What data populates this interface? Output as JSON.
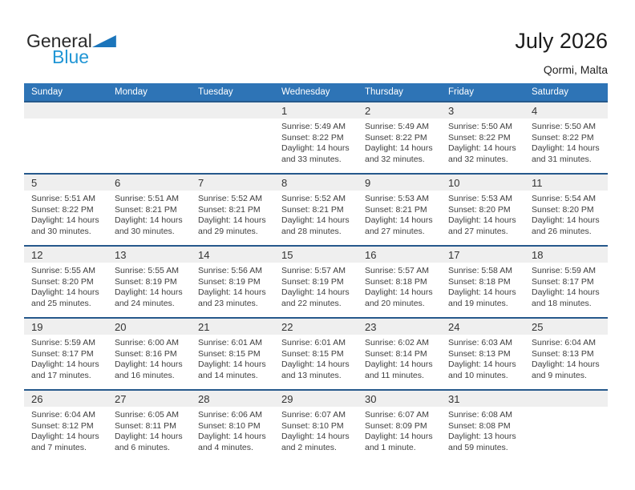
{
  "logo": {
    "part1": "General",
    "part2": "Blue",
    "flag_icon": "triangle-flag"
  },
  "header": {
    "title": "July 2026",
    "location": "Qormi, Malta"
  },
  "weekdays": [
    "Sunday",
    "Monday",
    "Tuesday",
    "Wednesday",
    "Thursday",
    "Friday",
    "Saturday"
  ],
  "colors": {
    "header_bg": "#2e74b6",
    "band_bg": "#efefef",
    "week_border": "#26598c",
    "logo_blue": "#2196d5",
    "flag_blue": "#1b75bb",
    "text_dark": "#3e3e3e"
  },
  "weeks": [
    [
      null,
      null,
      null,
      {
        "day": "1",
        "sunrise": "Sunrise: 5:49 AM",
        "sunset": "Sunset: 8:22 PM",
        "daylight": "Daylight: 14 hours and 33 minutes."
      },
      {
        "day": "2",
        "sunrise": "Sunrise: 5:49 AM",
        "sunset": "Sunset: 8:22 PM",
        "daylight": "Daylight: 14 hours and 32 minutes."
      },
      {
        "day": "3",
        "sunrise": "Sunrise: 5:50 AM",
        "sunset": "Sunset: 8:22 PM",
        "daylight": "Daylight: 14 hours and 32 minutes."
      },
      {
        "day": "4",
        "sunrise": "Sunrise: 5:50 AM",
        "sunset": "Sunset: 8:22 PM",
        "daylight": "Daylight: 14 hours and 31 minutes."
      }
    ],
    [
      {
        "day": "5",
        "sunrise": "Sunrise: 5:51 AM",
        "sunset": "Sunset: 8:22 PM",
        "daylight": "Daylight: 14 hours and 30 minutes."
      },
      {
        "day": "6",
        "sunrise": "Sunrise: 5:51 AM",
        "sunset": "Sunset: 8:21 PM",
        "daylight": "Daylight: 14 hours and 30 minutes."
      },
      {
        "day": "7",
        "sunrise": "Sunrise: 5:52 AM",
        "sunset": "Sunset: 8:21 PM",
        "daylight": "Daylight: 14 hours and 29 minutes."
      },
      {
        "day": "8",
        "sunrise": "Sunrise: 5:52 AM",
        "sunset": "Sunset: 8:21 PM",
        "daylight": "Daylight: 14 hours and 28 minutes."
      },
      {
        "day": "9",
        "sunrise": "Sunrise: 5:53 AM",
        "sunset": "Sunset: 8:21 PM",
        "daylight": "Daylight: 14 hours and 27 minutes."
      },
      {
        "day": "10",
        "sunrise": "Sunrise: 5:53 AM",
        "sunset": "Sunset: 8:20 PM",
        "daylight": "Daylight: 14 hours and 27 minutes."
      },
      {
        "day": "11",
        "sunrise": "Sunrise: 5:54 AM",
        "sunset": "Sunset: 8:20 PM",
        "daylight": "Daylight: 14 hours and 26 minutes."
      }
    ],
    [
      {
        "day": "12",
        "sunrise": "Sunrise: 5:55 AM",
        "sunset": "Sunset: 8:20 PM",
        "daylight": "Daylight: 14 hours and 25 minutes."
      },
      {
        "day": "13",
        "sunrise": "Sunrise: 5:55 AM",
        "sunset": "Sunset: 8:19 PM",
        "daylight": "Daylight: 14 hours and 24 minutes."
      },
      {
        "day": "14",
        "sunrise": "Sunrise: 5:56 AM",
        "sunset": "Sunset: 8:19 PM",
        "daylight": "Daylight: 14 hours and 23 minutes."
      },
      {
        "day": "15",
        "sunrise": "Sunrise: 5:57 AM",
        "sunset": "Sunset: 8:19 PM",
        "daylight": "Daylight: 14 hours and 22 minutes."
      },
      {
        "day": "16",
        "sunrise": "Sunrise: 5:57 AM",
        "sunset": "Sunset: 8:18 PM",
        "daylight": "Daylight: 14 hours and 20 minutes."
      },
      {
        "day": "17",
        "sunrise": "Sunrise: 5:58 AM",
        "sunset": "Sunset: 8:18 PM",
        "daylight": "Daylight: 14 hours and 19 minutes."
      },
      {
        "day": "18",
        "sunrise": "Sunrise: 5:59 AM",
        "sunset": "Sunset: 8:17 PM",
        "daylight": "Daylight: 14 hours and 18 minutes."
      }
    ],
    [
      {
        "day": "19",
        "sunrise": "Sunrise: 5:59 AM",
        "sunset": "Sunset: 8:17 PM",
        "daylight": "Daylight: 14 hours and 17 minutes."
      },
      {
        "day": "20",
        "sunrise": "Sunrise: 6:00 AM",
        "sunset": "Sunset: 8:16 PM",
        "daylight": "Daylight: 14 hours and 16 minutes."
      },
      {
        "day": "21",
        "sunrise": "Sunrise: 6:01 AM",
        "sunset": "Sunset: 8:15 PM",
        "daylight": "Daylight: 14 hours and 14 minutes."
      },
      {
        "day": "22",
        "sunrise": "Sunrise: 6:01 AM",
        "sunset": "Sunset: 8:15 PM",
        "daylight": "Daylight: 14 hours and 13 minutes."
      },
      {
        "day": "23",
        "sunrise": "Sunrise: 6:02 AM",
        "sunset": "Sunset: 8:14 PM",
        "daylight": "Daylight: 14 hours and 11 minutes."
      },
      {
        "day": "24",
        "sunrise": "Sunrise: 6:03 AM",
        "sunset": "Sunset: 8:13 PM",
        "daylight": "Daylight: 14 hours and 10 minutes."
      },
      {
        "day": "25",
        "sunrise": "Sunrise: 6:04 AM",
        "sunset": "Sunset: 8:13 PM",
        "daylight": "Daylight: 14 hours and 9 minutes."
      }
    ],
    [
      {
        "day": "26",
        "sunrise": "Sunrise: 6:04 AM",
        "sunset": "Sunset: 8:12 PM",
        "daylight": "Daylight: 14 hours and 7 minutes."
      },
      {
        "day": "27",
        "sunrise": "Sunrise: 6:05 AM",
        "sunset": "Sunset: 8:11 PM",
        "daylight": "Daylight: 14 hours and 6 minutes."
      },
      {
        "day": "28",
        "sunrise": "Sunrise: 6:06 AM",
        "sunset": "Sunset: 8:10 PM",
        "daylight": "Daylight: 14 hours and 4 minutes."
      },
      {
        "day": "29",
        "sunrise": "Sunrise: 6:07 AM",
        "sunset": "Sunset: 8:10 PM",
        "daylight": "Daylight: 14 hours and 2 minutes."
      },
      {
        "day": "30",
        "sunrise": "Sunrise: 6:07 AM",
        "sunset": "Sunset: 8:09 PM",
        "daylight": "Daylight: 14 hours and 1 minute."
      },
      {
        "day": "31",
        "sunrise": "Sunrise: 6:08 AM",
        "sunset": "Sunset: 8:08 PM",
        "daylight": "Daylight: 13 hours and 59 minutes."
      },
      null
    ]
  ]
}
